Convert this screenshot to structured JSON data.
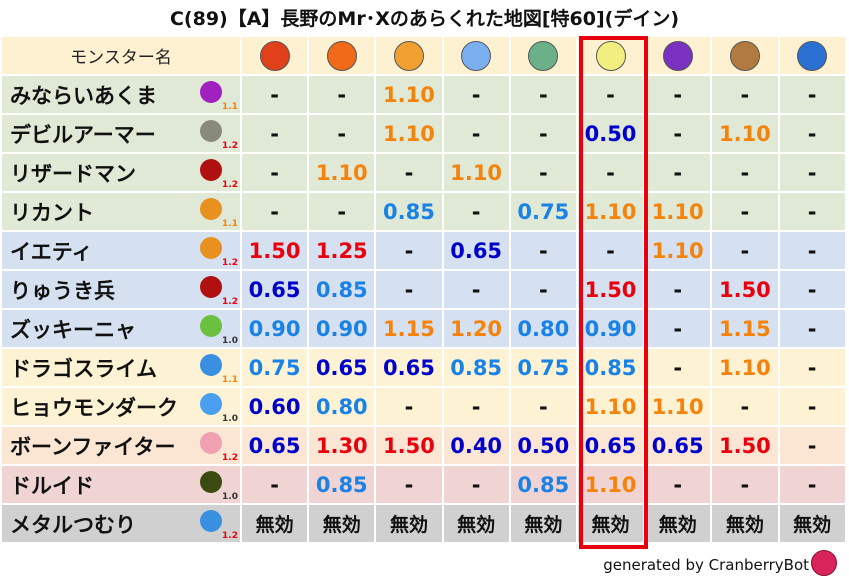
{
  "title": "C(89)【A】長野のMr･Xのあらくれた地図[特60](デイン)",
  "header": {
    "name_label": "モンスター名",
    "elements": [
      {
        "icon": "fireball-icon",
        "color": "#e0401a"
      },
      {
        "icon": "flame-icon",
        "color": "#f06a1a"
      },
      {
        "icon": "explosion-icon",
        "color": "#f0a030"
      },
      {
        "icon": "ice-icon",
        "color": "#7ab0f0"
      },
      {
        "icon": "wind-icon",
        "color": "#6ab08a"
      },
      {
        "icon": "lightning-icon",
        "color": "#f2ee80"
      },
      {
        "icon": "darkness-icon",
        "color": "#7a30c0"
      },
      {
        "icon": "earth-icon",
        "color": "#b07a40"
      },
      {
        "icon": "water-icon",
        "color": "#2a70d0"
      }
    ]
  },
  "colors": {
    "high": "#e8000f",
    "mid": "#f5820a",
    "low": "#1a82e6",
    "vlow": "#0000cc",
    "neutral": "#111111",
    "highlight": "#e8000f"
  },
  "rows": [
    {
      "name": "みならいあくま",
      "icon": "demon-icon",
      "icon_color": "#a020c0",
      "level": "1.1",
      "bg": "#dfe9d6",
      "values": [
        "-",
        "-",
        "1.10",
        "-",
        "-",
        "-",
        "-",
        "-",
        "-"
      ]
    },
    {
      "name": "デビルアーマー",
      "icon": "material-icon",
      "icon_color": "#8a8a7a",
      "level": "1.2",
      "bg": "#dfe9d6",
      "values": [
        "-",
        "-",
        "1.10",
        "-",
        "-",
        "0.50",
        "-",
        "1.10",
        "-"
      ]
    },
    {
      "name": "リザードマン",
      "icon": "dragon-icon",
      "icon_color": "#b01010",
      "level": "1.2",
      "bg": "#dfe9d6",
      "values": [
        "-",
        "1.10",
        "-",
        "1.10",
        "-",
        "-",
        "-",
        "-",
        "-"
      ]
    },
    {
      "name": "リカント",
      "icon": "beast-icon",
      "icon_color": "#e89020",
      "level": "1.1",
      "bg": "#dfe9d6",
      "values": [
        "-",
        "-",
        "0.85",
        "-",
        "0.75",
        "1.10",
        "1.10",
        "-",
        "-"
      ]
    },
    {
      "name": "イエティ",
      "icon": "beast-icon",
      "icon_color": "#e89020",
      "level": "1.2",
      "bg": "#d5e1f0",
      "values": [
        "1.50",
        "1.25",
        "-",
        "0.65",
        "-",
        "-",
        "1.10",
        "-",
        "-"
      ]
    },
    {
      "name": "りゅうき兵",
      "icon": "dragon-icon",
      "icon_color": "#b01010",
      "level": "1.2",
      "bg": "#d5e1f0",
      "values": [
        "0.65",
        "0.85",
        "-",
        "-",
        "-",
        "1.50",
        "-",
        "1.50",
        "-"
      ]
    },
    {
      "name": "ズッキーニャ",
      "icon": "plant-icon",
      "icon_color": "#6cc040",
      "level": "1.0",
      "bg": "#d5e1f0",
      "values": [
        "0.90",
        "0.90",
        "1.15",
        "1.20",
        "0.80",
        "0.90",
        "-",
        "1.15",
        "-"
      ]
    },
    {
      "name": "ドラゴスライム",
      "icon": "slime-icon",
      "icon_color": "#3a90e0",
      "level": "1.1",
      "bg": "#fdf3d4",
      "values": [
        "0.75",
        "0.65",
        "0.65",
        "0.85",
        "0.75",
        "0.85",
        "-",
        "1.10",
        "-"
      ]
    },
    {
      "name": "ヒョウモンダーク",
      "icon": "water-drop-icon",
      "icon_color": "#4aa0f0",
      "level": "1.0",
      "bg": "#fdf3d4",
      "values": [
        "0.60",
        "0.80",
        "-",
        "-",
        "-",
        "1.10",
        "1.10",
        "-",
        "-"
      ]
    },
    {
      "name": "ボーンファイター",
      "icon": "skull-icon",
      "icon_color": "#f0a0b0",
      "level": "1.2",
      "bg": "#fbe6d4",
      "values": [
        "0.65",
        "1.30",
        "1.50",
        "0.40",
        "0.50",
        "0.65",
        "0.65",
        "1.50",
        "-"
      ]
    },
    {
      "name": "ドルイド",
      "icon": "ghost-icon",
      "icon_color": "#3a4a10",
      "level": "1.0",
      "bg": "#f0d3d3",
      "values": [
        "-",
        "0.85",
        "-",
        "-",
        "0.85",
        "1.10",
        "-",
        "-",
        "-"
      ]
    },
    {
      "name": "メタルつむり",
      "icon": "slime-icon",
      "icon_color": "#3a90e0",
      "level": "1.2",
      "bg": "#d0d0d0",
      "values": [
        "無効",
        "無効",
        "無効",
        "無効",
        "無効",
        "無効",
        "無効",
        "無効",
        "無効"
      ]
    }
  ],
  "highlighted_column": 6,
  "footer": {
    "text": "generated by CranberryBot",
    "icon": "cranberry-bot-icon"
  }
}
